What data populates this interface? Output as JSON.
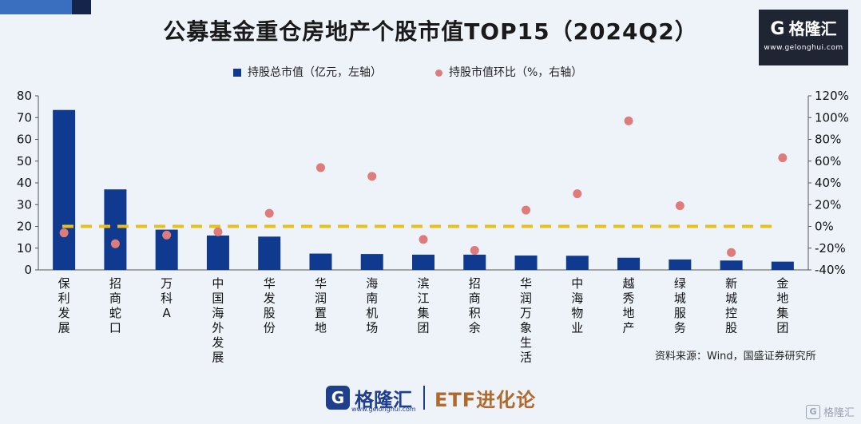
{
  "title": "公募基金重仓房地产个股市值TOP15（2024Q2）",
  "logo": {
    "icon": "G",
    "brand": "格隆汇",
    "url": "www.gelonghui.com"
  },
  "legend": {
    "bar": "持股总市值（亿元，左轴）",
    "dot": "持股市值环比（%，右轴）"
  },
  "source": "资料来源：Wind，国盛证券研究所",
  "bottom": {
    "icon": "G",
    "brand": "格隆汇",
    "url": "www.gelonghui.com",
    "tagline": "ETF进化论"
  },
  "watermark": "格隆汇",
  "colors": {
    "bar": "#0f3a8f",
    "dot": "#de7b7b",
    "zero_line": "#e8c01e"
  },
  "chart_data": {
    "type": "bar",
    "categories": [
      "保利发展",
      "招商蛇口",
      "万科A",
      "中国海外发展",
      "华发股份",
      "华润置地",
      "海南机场",
      "滨江集团",
      "招商积余",
      "华润万象生活",
      "中海物业",
      "越秀地产",
      "绿城服务",
      "新城控股",
      "金地集团"
    ],
    "series": [
      {
        "name": "持股总市值（亿元，左轴）",
        "type": "bar",
        "axis": "left",
        "values": [
          73.5,
          37.0,
          18.5,
          15.8,
          15.3,
          7.5,
          7.3,
          7.0,
          7.0,
          6.6,
          6.5,
          5.6,
          4.8,
          4.3,
          3.8
        ]
      },
      {
        "name": "持股市值环比（%，右轴）",
        "type": "scatter",
        "axis": "right",
        "values": [
          -6,
          -16,
          -8,
          -5,
          12,
          54,
          46,
          -12,
          -22,
          15,
          30,
          97,
          19,
          -24,
          63
        ]
      }
    ],
    "left_axis": {
      "min": 0,
      "max": 80,
      "ticks": [
        "0",
        "10",
        "20",
        "30",
        "40",
        "50",
        "60",
        "70",
        "80"
      ]
    },
    "right_axis": {
      "min": -40,
      "max": 120,
      "ticks": [
        "-40%",
        "-20%",
        "0%",
        "20%",
        "40%",
        "60%",
        "80%",
        "100%",
        "120%"
      ]
    },
    "reference_line": {
      "axis": "right",
      "value": 0,
      "style": "dashed"
    },
    "grid": false
  }
}
